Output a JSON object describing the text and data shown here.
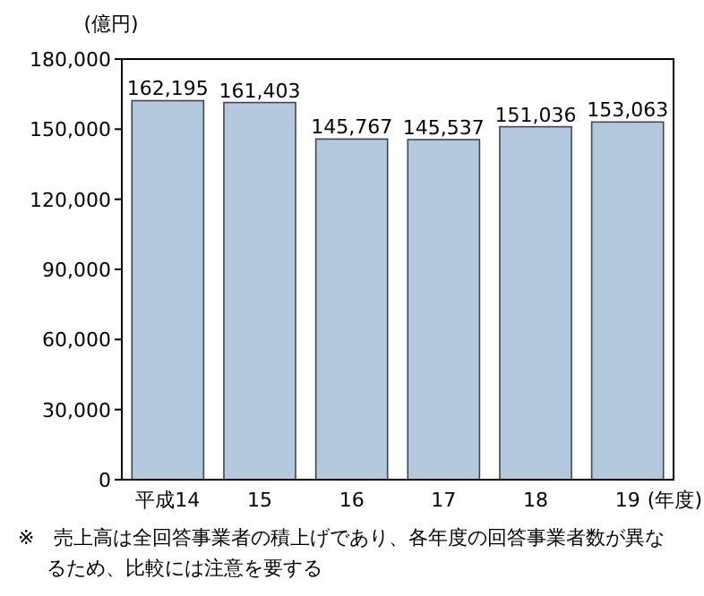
{
  "chart_data": {
    "type": "bar",
    "ylabel": "(億円)",
    "xlabel": "(年度)",
    "categories": [
      "平成14",
      "15",
      "16",
      "17",
      "18",
      "19"
    ],
    "values": [
      162195,
      161403,
      145767,
      145537,
      151036,
      153063
    ],
    "color": "#b4c8de",
    "value_labels": [
      "162,195",
      "161,403",
      "145,767",
      "145,537",
      "151,036",
      "153,063"
    ],
    "ylim": [
      0,
      180000
    ],
    "yticks": [
      0,
      {
        "value": 30000,
        "label": "30,000"
      },
      {
        "value": 60000,
        "label": "60,000"
      },
      {
        "value": 90000,
        "label": "90,000"
      },
      {
        "value": 120000,
        "label": "120,000"
      },
      {
        "value": 150000,
        "label": "150,000"
      },
      {
        "value": 180000,
        "label": "180,000"
      }
    ],
    "annotations": [
      "※　売上高は全回答事業者の積上げであり、各年度の回答事業者数が異なるため、比較には注意を要する"
    ]
  }
}
